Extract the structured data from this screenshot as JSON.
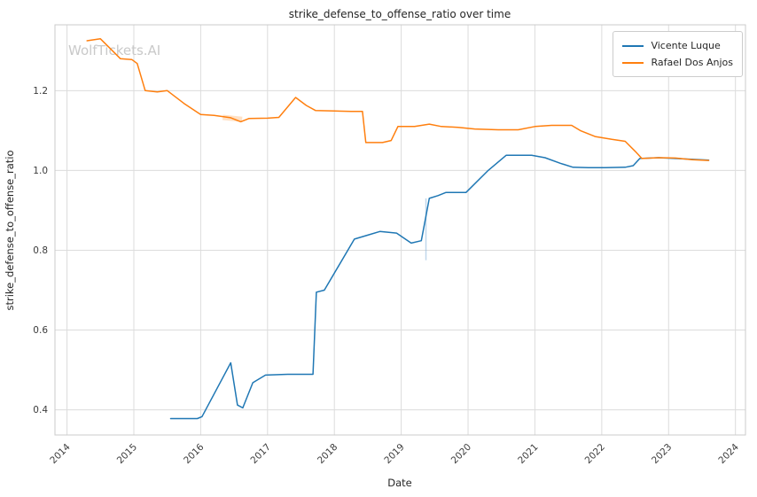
{
  "watermark": "WolfTickets.AI",
  "chart_data": {
    "type": "line",
    "title": "strike_defense_to_offense_ratio over time",
    "xlabel": "Date",
    "ylabel": "strike_defense_to_offense_ratio",
    "xlim": [
      2013.82,
      2024.15
    ],
    "ylim": [
      0.337,
      1.365
    ],
    "xticks": [
      2014,
      2015,
      2016,
      2017,
      2018,
      2019,
      2020,
      2021,
      2022,
      2023,
      2024
    ],
    "yticks": [
      0.4,
      0.6,
      0.8,
      1.0,
      1.2
    ],
    "grid": true,
    "legend_position": "upper right",
    "series": [
      {
        "name": "Vicente Luque",
        "color": "#1f77b4",
        "points": [
          [
            2015.55,
            0.378
          ],
          [
            2015.95,
            0.378
          ],
          [
            2016.02,
            0.383
          ],
          [
            2016.45,
            0.518
          ],
          [
            2016.55,
            0.412
          ],
          [
            2016.63,
            0.405
          ],
          [
            2016.78,
            0.468
          ],
          [
            2016.97,
            0.487
          ],
          [
            2017.3,
            0.489
          ],
          [
            2017.68,
            0.489
          ],
          [
            2017.73,
            0.695
          ],
          [
            2017.85,
            0.7
          ],
          [
            2018.3,
            0.828
          ],
          [
            2018.5,
            0.838
          ],
          [
            2018.68,
            0.847
          ],
          [
            2018.93,
            0.843
          ],
          [
            2019.15,
            0.818
          ],
          [
            2019.3,
            0.824
          ],
          [
            2019.42,
            0.93
          ],
          [
            2019.55,
            0.937
          ],
          [
            2019.67,
            0.945
          ],
          [
            2019.97,
            0.945
          ],
          [
            2020.3,
            1.0
          ],
          [
            2020.57,
            1.038
          ],
          [
            2020.95,
            1.038
          ],
          [
            2021.15,
            1.032
          ],
          [
            2021.38,
            1.018
          ],
          [
            2021.57,
            1.008
          ],
          [
            2021.8,
            1.007
          ],
          [
            2022.05,
            1.007
          ],
          [
            2022.35,
            1.008
          ],
          [
            2022.47,
            1.012
          ],
          [
            2022.57,
            1.03
          ],
          [
            2022.85,
            1.032
          ],
          [
            2023.1,
            1.03
          ],
          [
            2023.6,
            1.026
          ]
        ]
      },
      {
        "name": "Rafael Dos Anjos",
        "color": "#ff7f0e",
        "points": [
          [
            2014.3,
            1.325
          ],
          [
            2014.5,
            1.33
          ],
          [
            2014.68,
            1.3
          ],
          [
            2014.8,
            1.28
          ],
          [
            2014.97,
            1.278
          ],
          [
            2015.05,
            1.268
          ],
          [
            2015.17,
            1.2
          ],
          [
            2015.35,
            1.197
          ],
          [
            2015.5,
            1.2
          ],
          [
            2015.75,
            1.168
          ],
          [
            2016.0,
            1.14
          ],
          [
            2016.2,
            1.138
          ],
          [
            2016.45,
            1.132
          ],
          [
            2016.6,
            1.122
          ],
          [
            2016.72,
            1.13
          ],
          [
            2017.0,
            1.131
          ],
          [
            2017.17,
            1.133
          ],
          [
            2017.42,
            1.183
          ],
          [
            2017.58,
            1.163
          ],
          [
            2017.72,
            1.15
          ],
          [
            2018.0,
            1.149
          ],
          [
            2018.25,
            1.148
          ],
          [
            2018.42,
            1.148
          ],
          [
            2018.47,
            1.07
          ],
          [
            2018.72,
            1.07
          ],
          [
            2018.85,
            1.075
          ],
          [
            2018.95,
            1.11
          ],
          [
            2019.2,
            1.11
          ],
          [
            2019.42,
            1.116
          ],
          [
            2019.6,
            1.11
          ],
          [
            2019.85,
            1.108
          ],
          [
            2020.1,
            1.104
          ],
          [
            2020.45,
            1.102
          ],
          [
            2020.75,
            1.102
          ],
          [
            2021.0,
            1.11
          ],
          [
            2021.25,
            1.113
          ],
          [
            2021.55,
            1.113
          ],
          [
            2021.68,
            1.1
          ],
          [
            2021.9,
            1.085
          ],
          [
            2022.15,
            1.078
          ],
          [
            2022.35,
            1.073
          ],
          [
            2022.5,
            1.048
          ],
          [
            2022.6,
            1.03
          ],
          [
            2022.85,
            1.032
          ],
          [
            2023.1,
            1.031
          ],
          [
            2023.35,
            1.027
          ],
          [
            2023.6,
            1.025
          ]
        ]
      }
    ],
    "annotations": [
      {
        "type": "line",
        "name": "highlight-band-orange",
        "x1": 2016.33,
        "y1": 1.133,
        "x2": 2016.62,
        "y2": 1.128,
        "color": "rgba(255,170,90,0.35)",
        "width": 6
      },
      {
        "type": "line",
        "name": "errorbar-blue",
        "x1": 2019.37,
        "y1": 0.775,
        "x2": 2019.37,
        "y2": 0.93,
        "color": "rgba(130,175,215,0.5)",
        "width": 1.5
      }
    ]
  }
}
